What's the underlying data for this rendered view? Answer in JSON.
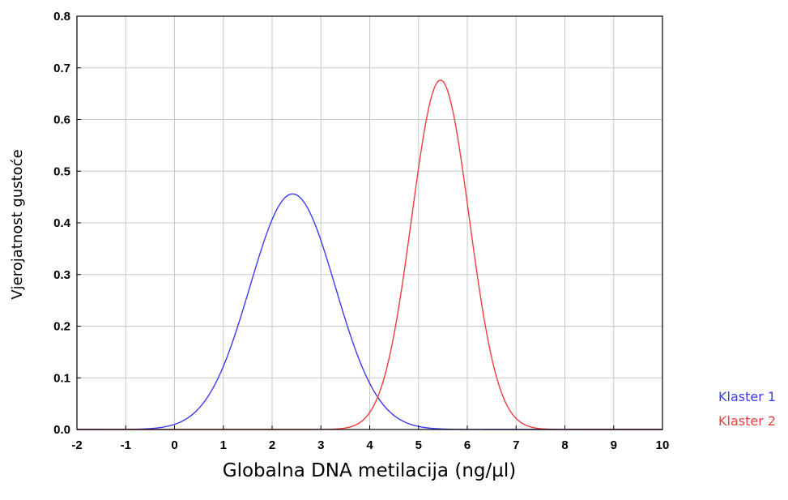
{
  "chart_data": {
    "type": "line",
    "xlabel": "Globalna DNA metilacija (ng/µl)",
    "ylabel": "Vjerojatnost gustoće",
    "xlim": [
      -2,
      10
    ],
    "ylim": [
      0,
      0.8
    ],
    "x_ticks": [
      "-2",
      "-1",
      "0",
      "1",
      "2",
      "3",
      "4",
      "5",
      "6",
      "7",
      "8",
      "9",
      "10"
    ],
    "y_ticks": [
      "0.0",
      "0.1",
      "0.2",
      "0.3",
      "0.4",
      "0.5",
      "0.6",
      "0.7",
      "0.8"
    ],
    "grid": true,
    "legend_position": "bottom-right outside",
    "series": [
      {
        "name": "Klaster 1",
        "color": "#3b3bf5",
        "distribution": "normal",
        "mean": 2.42,
        "sd": 0.875
      },
      {
        "name": "Klaster 2",
        "color": "#f03c3c",
        "distribution": "normal",
        "mean": 5.45,
        "sd": 0.59
      }
    ]
  }
}
